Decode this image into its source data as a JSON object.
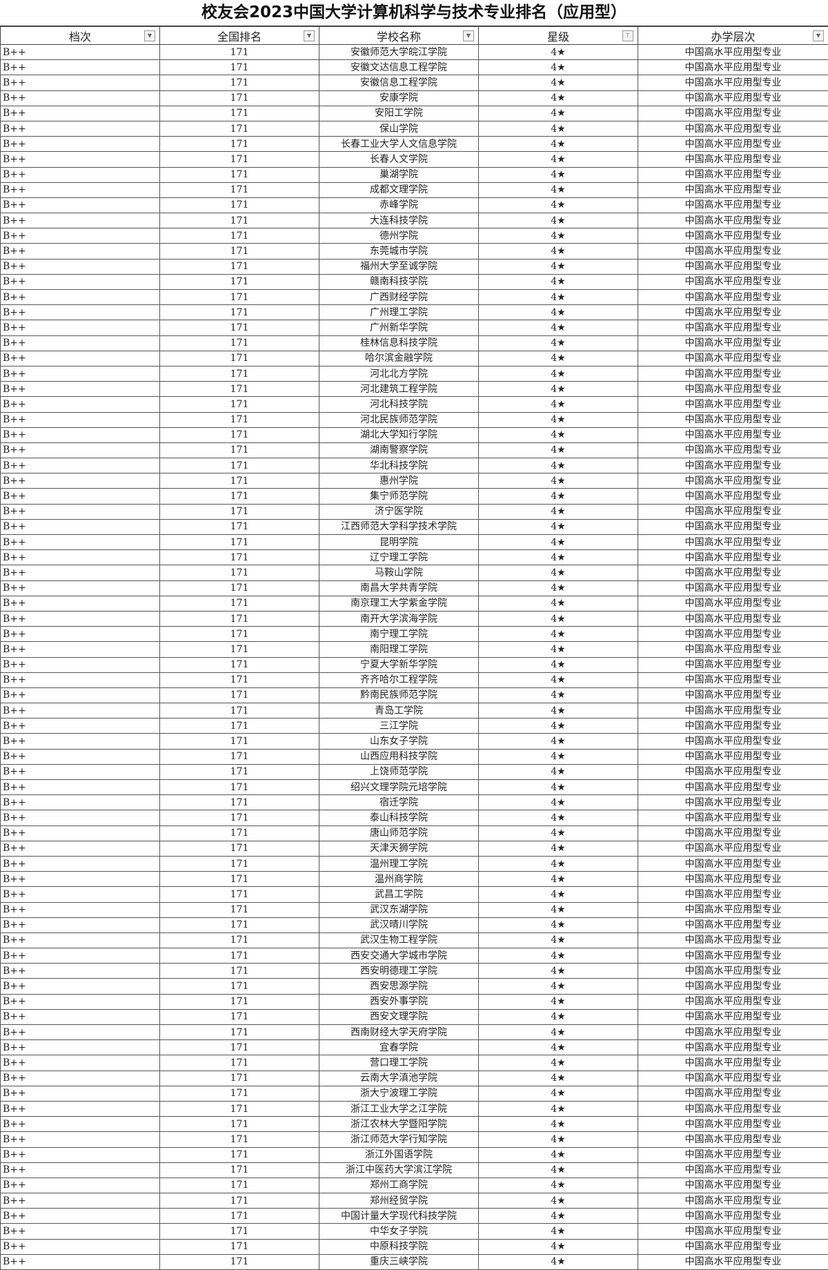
{
  "title": "校友会2023中国大学计算机科学与技术专业排名（应用型）",
  "columns": [
    {
      "label": "档次",
      "filter_icon": "dropdown-arrow-icon"
    },
    {
      "label": "全国排名",
      "filter_icon": "dropdown-arrow-icon"
    },
    {
      "label": "学校名称",
      "filter_icon": "dropdown-arrow-icon"
    },
    {
      "label": "星级",
      "filter_icon": "filter-active-icon"
    },
    {
      "label": "办学层次",
      "filter_icon": "dropdown-arrow-icon"
    }
  ],
  "common": {
    "tier": "B++",
    "rank": "171",
    "stars": "4★",
    "level": "中国高水平应用型专业"
  },
  "schools": [
    "安徽师范大学皖江学院",
    "安徽文达信息工程学院",
    "安徽信息工程学院",
    "安康学院",
    "安阳工学院",
    "保山学院",
    "长春工业大学人文信息学院",
    "长春人文学院",
    "巢湖学院",
    "成都文理学院",
    "赤峰学院",
    "大连科技学院",
    "德州学院",
    "东莞城市学院",
    "福州大学至诚学院",
    "赣南科技学院",
    "广西财经学院",
    "广州理工学院",
    "广州新华学院",
    "桂林信息科技学院",
    "哈尔滨金融学院",
    "河北北方学院",
    "河北建筑工程学院",
    "河北科技学院",
    "河北民族师范学院",
    "湖北大学知行学院",
    "湖南警察学院",
    "华北科技学院",
    "惠州学院",
    "集宁师范学院",
    "济宁医学院",
    "江西师范大学科学技术学院",
    "昆明学院",
    "辽宁理工学院",
    "马鞍山学院",
    "南昌大学共青学院",
    "南京理工大学紫金学院",
    "南开大学滨海学院",
    "南宁理工学院",
    "南阳理工学院",
    "宁夏大学新华学院",
    "齐齐哈尔工程学院",
    "黔南民族师范学院",
    "青岛工学院",
    "三江学院",
    "山东女子学院",
    "山西应用科技学院",
    "上饶师范学院",
    "绍兴文理学院元培学院",
    "宿迁学院",
    "泰山科技学院",
    "唐山师范学院",
    "天津天狮学院",
    "温州理工学院",
    "温州商学院",
    "武昌工学院",
    "武汉东湖学院",
    "武汉晴川学院",
    "武汉生物工程学院",
    "西安交通大学城市学院",
    "西安明德理工学院",
    "西安思源学院",
    "西安外事学院",
    "西安文理学院",
    "西南财经大学天府学院",
    "宜春学院",
    "营口理工学院",
    "云南大学滇池学院",
    "浙大宁波理工学院",
    "浙江工业大学之江学院",
    "浙江农林大学暨阳学院",
    "浙江师范大学行知学院",
    "浙江外国语学院",
    "浙江中医药大学滨江学院",
    "郑州工商学院",
    "郑州经贸学院",
    "中国计量大学现代科技学院",
    "中华女子学院",
    "中原科技学院",
    "重庆三峡学院"
  ]
}
